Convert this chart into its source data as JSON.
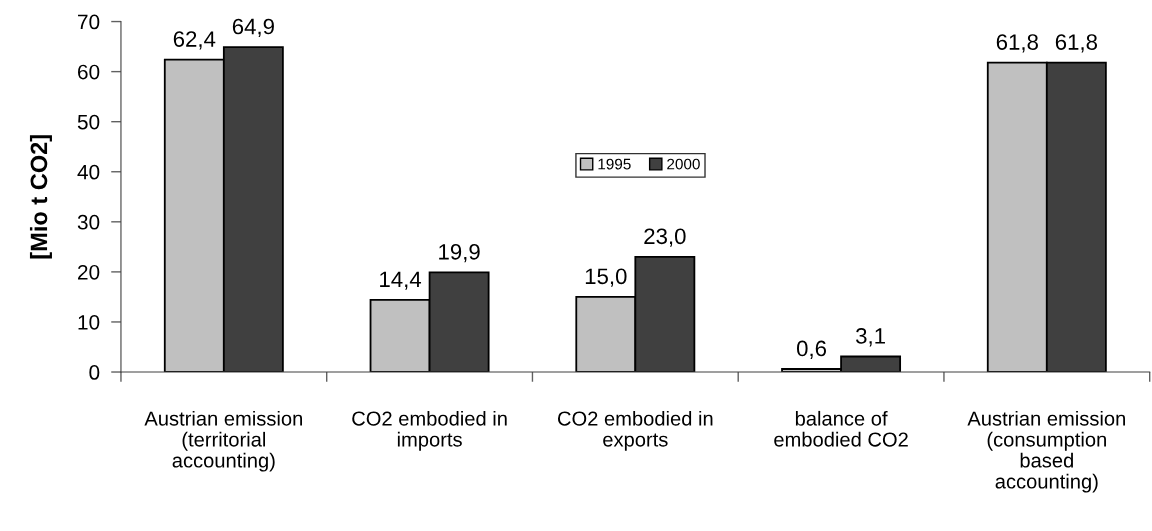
{
  "chart_data": {
    "type": "bar",
    "ylabel": "[Mio t CO2]",
    "categories": [
      "Austrian emission\n(territorial\naccounting)",
      "CO2 embodied in\nimports",
      "CO2 embodied in\nexports",
      "balance of\nembodied CO2",
      "Austrian emission\n(consumption\nbased\naccounting)"
    ],
    "series": [
      {
        "name": "1995",
        "color": "#c0c0c0",
        "values": [
          62.4,
          14.4,
          15.0,
          0.6,
          61.8
        ],
        "value_labels": [
          "62,4",
          "14,4",
          "15,0",
          "0,6",
          "61,8"
        ]
      },
      {
        "name": "2000",
        "color": "#404040",
        "values": [
          64.9,
          19.9,
          23.0,
          3.1,
          61.8
        ],
        "value_labels": [
          "64,9",
          "19,9",
          "23,0",
          "3,1",
          "61,8"
        ]
      }
    ],
    "ylim": [
      0,
      70
    ],
    "yticks": [
      0,
      10,
      20,
      30,
      40,
      50,
      60,
      70
    ],
    "legend": "top"
  }
}
